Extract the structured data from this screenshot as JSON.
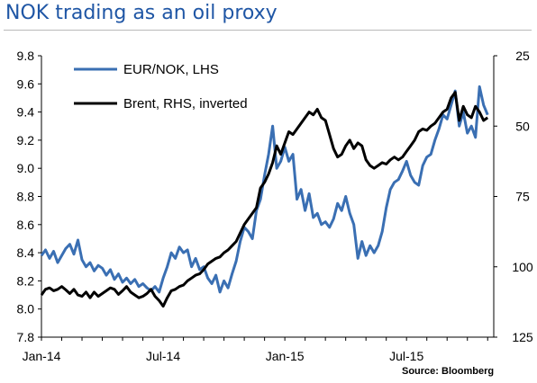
{
  "chart_data": {
    "type": "line",
    "title": "NOK trading as an oil proxy",
    "source": "Source: Bloomberg",
    "x_tick_labels": [
      "Jan-14",
      "Jul-14",
      "Jan-15",
      "Jul-15"
    ],
    "x_tick_values": [
      0,
      6,
      12,
      18
    ],
    "x_range": [
      0,
      22.3
    ],
    "y_left": {
      "range": [
        7.8,
        9.8
      ],
      "ticks": [
        "7.8",
        "8.0",
        "8.2",
        "8.4",
        "8.6",
        "8.8",
        "9.0",
        "9.2",
        "9.4",
        "9.6",
        "9.8"
      ]
    },
    "y_right": {
      "range": [
        25,
        125
      ],
      "inverted": true,
      "ticks": [
        "25",
        "50",
        "75",
        "100",
        "125"
      ]
    },
    "legend_position": "top-left",
    "series": [
      {
        "name": "EUR/NOK, LHS",
        "axis": "left",
        "color": "#3a6fb3",
        "points": [
          [
            0,
            8.38
          ],
          [
            0.2,
            8.42
          ],
          [
            0.4,
            8.36
          ],
          [
            0.6,
            8.41
          ],
          [
            0.8,
            8.33
          ],
          [
            1.0,
            8.38
          ],
          [
            1.2,
            8.43
          ],
          [
            1.4,
            8.46
          ],
          [
            1.6,
            8.39
          ],
          [
            1.8,
            8.49
          ],
          [
            2.0,
            8.35
          ],
          [
            2.2,
            8.3
          ],
          [
            2.4,
            8.33
          ],
          [
            2.6,
            8.27
          ],
          [
            2.8,
            8.31
          ],
          [
            3.0,
            8.29
          ],
          [
            3.2,
            8.24
          ],
          [
            3.4,
            8.28
          ],
          [
            3.6,
            8.21
          ],
          [
            3.8,
            8.25
          ],
          [
            4.0,
            8.19
          ],
          [
            4.2,
            8.22
          ],
          [
            4.4,
            8.18
          ],
          [
            4.6,
            8.21
          ],
          [
            4.8,
            8.16
          ],
          [
            5.0,
            8.18
          ],
          [
            5.2,
            8.15
          ],
          [
            5.4,
            8.13
          ],
          [
            5.6,
            8.16
          ],
          [
            5.8,
            8.12
          ],
          [
            6.0,
            8.22
          ],
          [
            6.2,
            8.3
          ],
          [
            6.4,
            8.4
          ],
          [
            6.6,
            8.36
          ],
          [
            6.8,
            8.44
          ],
          [
            7.0,
            8.4
          ],
          [
            7.2,
            8.42
          ],
          [
            7.4,
            8.3
          ],
          [
            7.6,
            8.36
          ],
          [
            7.8,
            8.28
          ],
          [
            8.0,
            8.3
          ],
          [
            8.2,
            8.22
          ],
          [
            8.4,
            8.18
          ],
          [
            8.6,
            8.24
          ],
          [
            8.8,
            8.12
          ],
          [
            9.0,
            8.2
          ],
          [
            9.2,
            8.15
          ],
          [
            9.4,
            8.25
          ],
          [
            9.6,
            8.34
          ],
          [
            9.8,
            8.48
          ],
          [
            10.0,
            8.58
          ],
          [
            10.2,
            8.55
          ],
          [
            10.4,
            8.5
          ],
          [
            10.6,
            8.7
          ],
          [
            10.8,
            8.78
          ],
          [
            11.0,
            8.95
          ],
          [
            11.2,
            9.1
          ],
          [
            11.4,
            9.3
          ],
          [
            11.6,
            9.0
          ],
          [
            11.8,
            9.05
          ],
          [
            12.0,
            9.15
          ],
          [
            12.2,
            9.05
          ],
          [
            12.4,
            9.1
          ],
          [
            12.6,
            8.78
          ],
          [
            12.8,
            8.85
          ],
          [
            13.0,
            8.7
          ],
          [
            13.2,
            8.82
          ],
          [
            13.4,
            8.65
          ],
          [
            13.6,
            8.68
          ],
          [
            13.8,
            8.6
          ],
          [
            14.0,
            8.62
          ],
          [
            14.2,
            8.58
          ],
          [
            14.4,
            8.64
          ],
          [
            14.6,
            8.75
          ],
          [
            14.8,
            8.7
          ],
          [
            15.0,
            8.8
          ],
          [
            15.2,
            8.68
          ],
          [
            15.4,
            8.6
          ],
          [
            15.6,
            8.36
          ],
          [
            15.8,
            8.48
          ],
          [
            16.0,
            8.38
          ],
          [
            16.2,
            8.45
          ],
          [
            16.4,
            8.4
          ],
          [
            16.6,
            8.45
          ],
          [
            16.8,
            8.55
          ],
          [
            17.0,
            8.72
          ],
          [
            17.2,
            8.85
          ],
          [
            17.4,
            8.9
          ],
          [
            17.6,
            8.92
          ],
          [
            17.8,
            8.98
          ],
          [
            18.0,
            9.05
          ],
          [
            18.2,
            8.95
          ],
          [
            18.4,
            8.9
          ],
          [
            18.6,
            8.88
          ],
          [
            18.8,
            9.02
          ],
          [
            19.0,
            9.08
          ],
          [
            19.2,
            9.1
          ],
          [
            19.4,
            9.2
          ],
          [
            19.6,
            9.28
          ],
          [
            19.8,
            9.38
          ],
          [
            20.0,
            9.35
          ],
          [
            20.2,
            9.45
          ],
          [
            20.4,
            9.55
          ],
          [
            20.6,
            9.3
          ],
          [
            20.8,
            9.4
          ],
          [
            21.0,
            9.25
          ],
          [
            21.2,
            9.3
          ],
          [
            21.4,
            9.22
          ],
          [
            21.6,
            9.58
          ],
          [
            21.8,
            9.45
          ],
          [
            22.0,
            9.38
          ]
        ]
      },
      {
        "name": "Brent, RHS, inverted",
        "axis": "right",
        "color": "#000000",
        "points": [
          [
            0,
            110
          ],
          [
            0.2,
            108
          ],
          [
            0.4,
            107.5
          ],
          [
            0.6,
            108.5
          ],
          [
            0.8,
            108
          ],
          [
            1.0,
            107
          ],
          [
            1.2,
            108.2
          ],
          [
            1.4,
            109.5
          ],
          [
            1.6,
            108
          ],
          [
            1.8,
            110
          ],
          [
            2.0,
            110.5
          ],
          [
            2.2,
            109
          ],
          [
            2.4,
            111
          ],
          [
            2.6,
            109
          ],
          [
            2.8,
            110.5
          ],
          [
            3.0,
            109.5
          ],
          [
            3.2,
            108.5
          ],
          [
            3.4,
            107.5
          ],
          [
            3.6,
            108
          ],
          [
            3.8,
            109.8
          ],
          [
            4.0,
            108.5
          ],
          [
            4.2,
            107
          ],
          [
            4.4,
            109
          ],
          [
            4.6,
            110
          ],
          [
            4.8,
            111
          ],
          [
            5.0,
            110.5
          ],
          [
            5.2,
            109.5
          ],
          [
            5.4,
            108
          ],
          [
            5.6,
            110.5
          ],
          [
            5.8,
            112
          ],
          [
            6.0,
            114
          ],
          [
            6.2,
            111
          ],
          [
            6.4,
            108.5
          ],
          [
            6.6,
            108
          ],
          [
            6.8,
            107
          ],
          [
            7.0,
            106.5
          ],
          [
            7.2,
            105
          ],
          [
            7.4,
            104
          ],
          [
            7.6,
            103
          ],
          [
            7.8,
            102.5
          ],
          [
            8.0,
            101
          ],
          [
            8.2,
            99
          ],
          [
            8.4,
            98
          ],
          [
            8.6,
            97
          ],
          [
            8.8,
            96.5
          ],
          [
            9.0,
            95
          ],
          [
            9.2,
            94
          ],
          [
            9.4,
            92.5
          ],
          [
            9.6,
            91
          ],
          [
            9.8,
            88
          ],
          [
            10.0,
            85
          ],
          [
            10.2,
            83
          ],
          [
            10.4,
            81
          ],
          [
            10.6,
            79
          ],
          [
            10.8,
            72
          ],
          [
            11.0,
            70
          ],
          [
            11.2,
            67
          ],
          [
            11.4,
            63
          ],
          [
            11.6,
            57
          ],
          [
            11.8,
            60
          ],
          [
            12.0,
            56
          ],
          [
            12.2,
            52
          ],
          [
            12.4,
            53
          ],
          [
            12.6,
            51
          ],
          [
            12.8,
            49
          ],
          [
            13.0,
            47
          ],
          [
            13.2,
            45
          ],
          [
            13.4,
            46
          ],
          [
            13.6,
            44
          ],
          [
            13.8,
            47
          ],
          [
            14.0,
            48
          ],
          [
            14.2,
            53
          ],
          [
            14.4,
            58
          ],
          [
            14.6,
            61
          ],
          [
            14.8,
            60
          ],
          [
            15.0,
            57
          ],
          [
            15.2,
            55
          ],
          [
            15.4,
            58
          ],
          [
            15.6,
            56
          ],
          [
            15.8,
            57
          ],
          [
            16.0,
            62
          ],
          [
            16.2,
            64
          ],
          [
            16.4,
            65
          ],
          [
            16.6,
            64
          ],
          [
            16.8,
            63
          ],
          [
            17.0,
            63.5
          ],
          [
            17.2,
            62
          ],
          [
            17.4,
            61
          ],
          [
            17.6,
            62
          ],
          [
            17.8,
            61
          ],
          [
            18.0,
            59
          ],
          [
            18.2,
            57
          ],
          [
            18.4,
            55
          ],
          [
            18.6,
            52
          ],
          [
            18.8,
            51
          ],
          [
            19.0,
            51.5
          ],
          [
            19.2,
            50
          ],
          [
            19.4,
            49
          ],
          [
            19.6,
            47
          ],
          [
            19.8,
            45
          ],
          [
            20.0,
            44
          ],
          [
            20.2,
            40
          ],
          [
            20.4,
            38
          ],
          [
            20.6,
            48
          ],
          [
            20.8,
            43
          ],
          [
            21.0,
            46
          ],
          [
            21.2,
            47
          ],
          [
            21.4,
            43
          ],
          [
            21.6,
            45
          ],
          [
            21.8,
            48
          ],
          [
            22.0,
            47
          ]
        ]
      }
    ]
  }
}
